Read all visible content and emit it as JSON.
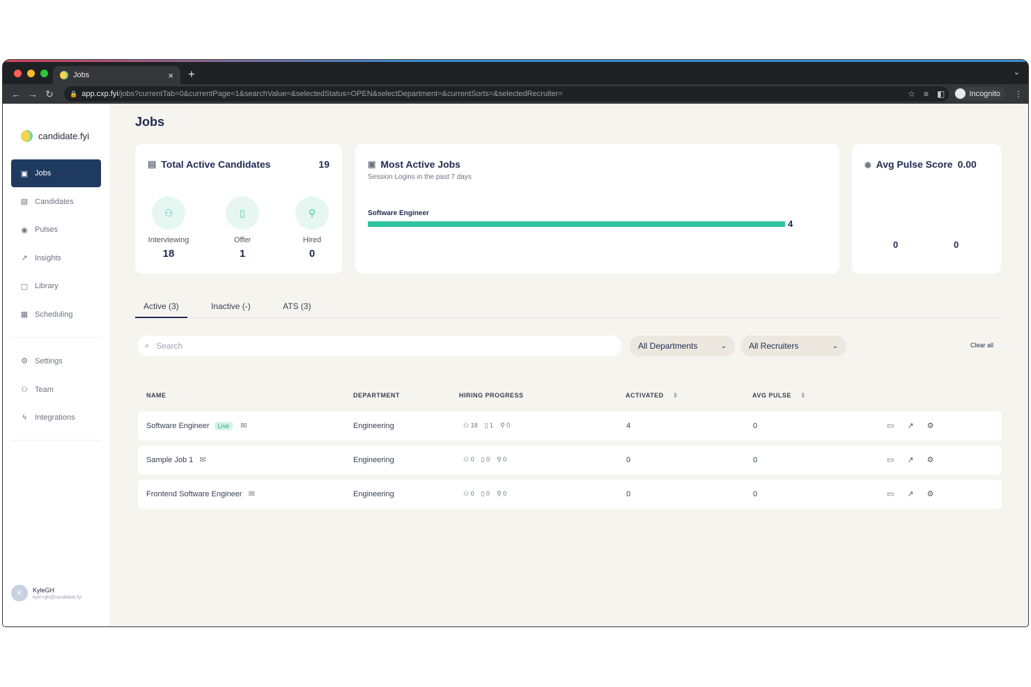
{
  "browser": {
    "tab_title": "Jobs",
    "tab_close": "×",
    "new_tab": "+",
    "tab_menu": "⌄",
    "url_host": "app.cxp.fyi",
    "url_path": "/jobs?currentTab=0&currentPage=1&searchValue=&selectedStatus=OPEN&selectDepartment=&currentSorts=&selectedRecruiter=",
    "incognito_label": "Incognito",
    "traffic_colors": [
      "#ff5f57",
      "#febc2e",
      "#28c840"
    ]
  },
  "sidebar": {
    "brand": "candidate.fyi",
    "items": [
      {
        "label": "Jobs",
        "icon": "briefcase-icon",
        "glyph": "▣"
      },
      {
        "label": "Candidates",
        "icon": "id-card-icon",
        "glyph": "▤"
      },
      {
        "label": "Pulses",
        "icon": "pulse-icon",
        "glyph": "◉"
      },
      {
        "label": "Insights",
        "icon": "chart-icon",
        "glyph": "↗"
      },
      {
        "label": "Library",
        "icon": "book-icon",
        "glyph": "▢"
      },
      {
        "label": "Scheduling",
        "icon": "calendar-icon",
        "glyph": "▦"
      }
    ],
    "items2": [
      {
        "label": "Settings",
        "icon": "gear-icon",
        "glyph": "⚙"
      },
      {
        "label": "Team",
        "icon": "team-icon",
        "glyph": "⚇"
      },
      {
        "label": "Integrations",
        "icon": "bolt-icon",
        "glyph": "ϟ"
      }
    ],
    "user": {
      "initial": "K",
      "name": "KyleGH",
      "email": "kyle+gh@candidate.fyi"
    }
  },
  "page": {
    "title": "Jobs"
  },
  "cards": {
    "total": {
      "title": "Total Active Candidates",
      "count": "19",
      "stats": [
        {
          "label": "Interviewing",
          "value": "18"
        },
        {
          "label": "Offer",
          "value": "1"
        },
        {
          "label": "Hired",
          "value": "0"
        }
      ]
    },
    "most_active": {
      "title": "Most Active Jobs",
      "subtitle": "Session Logins in the past 7 days",
      "bar_label": "Software Engineer",
      "bar_value": "4",
      "bar_fraction": 1.0
    },
    "pulse": {
      "title": "Avg Pulse Score",
      "score": "0.00",
      "values": [
        "0",
        "0"
      ]
    }
  },
  "tabs": [
    {
      "label": "Active (3)"
    },
    {
      "label": "Inactive (-)"
    },
    {
      "label": "ATS (3)"
    }
  ],
  "filters": {
    "search_placeholder": "Search",
    "department": "All Departments",
    "recruiter": "All Recruiters",
    "clear": "Clear all"
  },
  "table": {
    "headers": [
      "NAME",
      "DEPARTMENT",
      "HIRING PROGRESS",
      "ACTIVATED",
      "AVG PULSE"
    ],
    "sort_glyph": "⇕",
    "rows": [
      {
        "name": "Software Engineer",
        "live": "Live",
        "department": "Engineering",
        "interviewing": "18",
        "offer": "1",
        "hired": "0",
        "activated": "4",
        "avg_pulse": "0"
      },
      {
        "name": "Sample Job 1",
        "live": "",
        "department": "Engineering",
        "interviewing": "0",
        "offer": "0",
        "hired": "0",
        "activated": "0",
        "avg_pulse": "0"
      },
      {
        "name": "Frontend Software Engineer",
        "live": "",
        "department": "Engineering",
        "interviewing": "0",
        "offer": "0",
        "hired": "0",
        "activated": "0",
        "avg_pulse": "0"
      }
    ]
  },
  "colors": {
    "accent": "#2ec4a0",
    "nav_active": "#1e3a5f",
    "title": "#1e2a50"
  }
}
